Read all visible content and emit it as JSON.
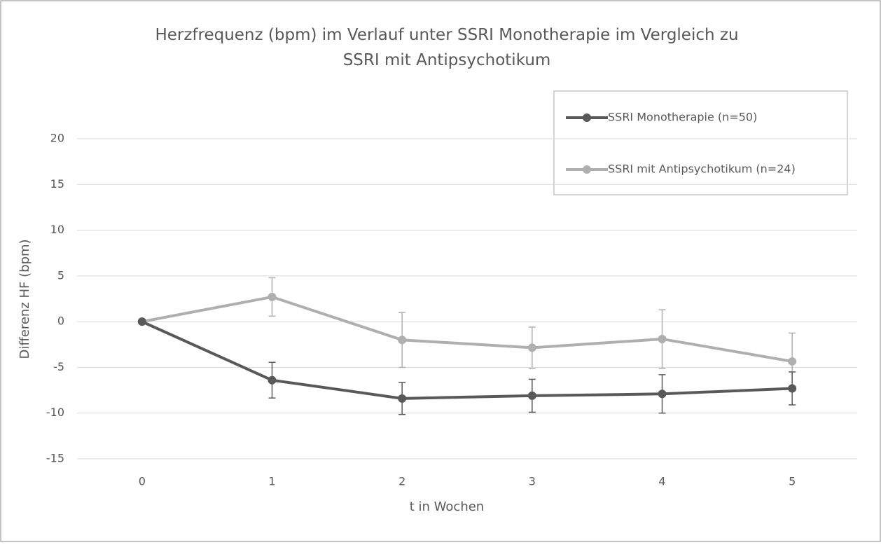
{
  "chart_data": {
    "type": "line",
    "title": "Herzfrequenz (bpm) im Verlauf unter SSRI Monotherapie im Vergleich zu SSRI mit Antipsychotikum",
    "xlabel": "t in Wochen",
    "ylabel": "Differenz HF (bpm)",
    "categories": [
      "0",
      "1",
      "2",
      "3",
      "4",
      "5"
    ],
    "series": [
      {
        "name": "SSRI Monotherapie (n=50)",
        "color": "#595959",
        "values": [
          0,
          -6.4,
          -8.4,
          -8.1,
          -7.9,
          -7.3
        ],
        "errors": [
          0,
          1.95,
          1.75,
          1.8,
          2.1,
          1.8
        ]
      },
      {
        "name": "SSRI mit Antipsychotikum (n=24)",
        "color": "#afafaf",
        "values": [
          0,
          2.7,
          -2.0,
          -2.85,
          -1.9,
          -4.35
        ],
        "errors": [
          0,
          2.1,
          3.0,
          2.25,
          3.2,
          3.1
        ]
      }
    ],
    "ylim": [
      -15,
      20
    ],
    "yticks": [
      -15,
      -10,
      -5,
      0,
      5,
      10,
      15,
      20
    ],
    "grid": true,
    "legend": "upper right"
  }
}
